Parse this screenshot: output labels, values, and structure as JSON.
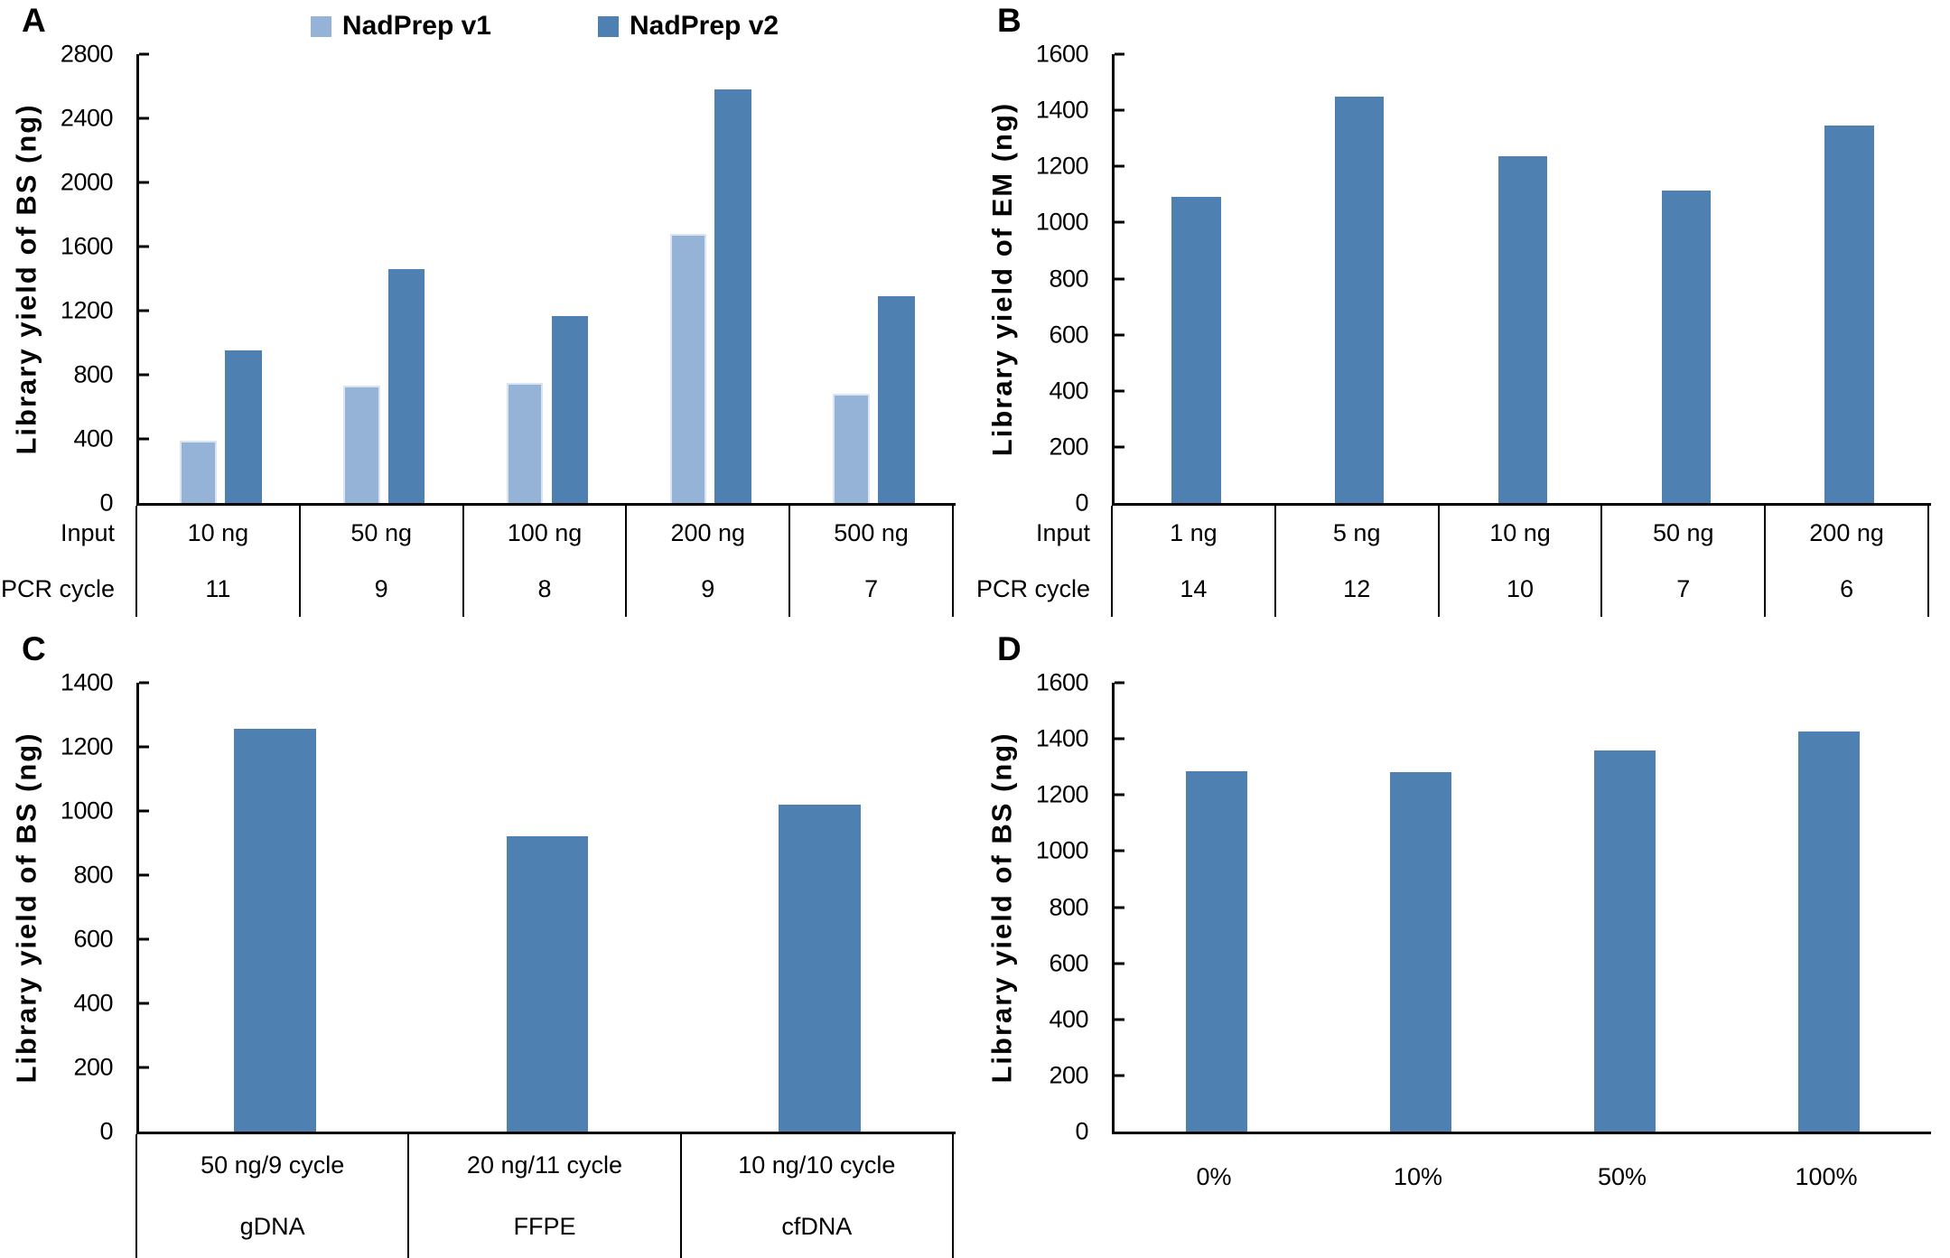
{
  "figure": {
    "background": "#ffffff"
  },
  "palette": {
    "series_light": "#95B3D7",
    "series_dark": "#4E80B2",
    "axis": "#000000",
    "light_bar_border": "#DBE5F1"
  },
  "chart_data": [
    {
      "panel": "A",
      "type": "bar",
      "title": "",
      "ylabel": "Library yield of BS (ng)",
      "xlabel": "",
      "ylim": [
        0,
        2800
      ],
      "ytick_step": 400,
      "grid": false,
      "legend_position": "top",
      "categories": [
        "10 ng",
        "50 ng",
        "100 ng",
        "200 ng",
        "500 ng"
      ],
      "series": [
        {
          "name": "NadPrep v1",
          "color": "#95B3D7",
          "values": [
            390,
            730,
            750,
            1680,
            680
          ]
        },
        {
          "name": "NadPrep v2",
          "color": "#4E80B2",
          "values": [
            950,
            1460,
            1165,
            2580,
            1290
          ]
        }
      ],
      "x_table": {
        "bordered": true,
        "row_labels": [
          "Input",
          "PCR cycle"
        ],
        "rows": [
          [
            "10 ng",
            "50 ng",
            "100 ng",
            "200 ng",
            "500 ng"
          ],
          [
            "11",
            "9",
            "8",
            "9",
            "7"
          ]
        ]
      }
    },
    {
      "panel": "B",
      "type": "bar",
      "title": "",
      "ylabel": "Library yield of EM (ng)",
      "xlabel": "",
      "ylim": [
        0,
        1600
      ],
      "ytick_step": 200,
      "grid": false,
      "legend_position": "none",
      "categories": [
        "1 ng",
        "5 ng",
        "10 ng",
        "50 ng",
        "200 ng"
      ],
      "series": [
        {
          "color": "#4E80B2",
          "values": [
            1090,
            1450,
            1235,
            1115,
            1345
          ]
        }
      ],
      "x_table": {
        "bordered": true,
        "row_labels": [
          "Input",
          "PCR cycle"
        ],
        "rows": [
          [
            "1 ng",
            "5 ng",
            "10 ng",
            "50 ng",
            "200 ng"
          ],
          [
            "14",
            "12",
            "10",
            "7",
            "6"
          ]
        ]
      }
    },
    {
      "panel": "C",
      "type": "bar",
      "title": "",
      "ylabel": "Library yield of BS (ng)",
      "xlabel": "",
      "ylim": [
        0,
        1400
      ],
      "ytick_step": 200,
      "grid": false,
      "legend_position": "none",
      "categories": [
        "50 ng/9 cycle",
        "20 ng/11 cycle",
        "10 ng/10 cycle"
      ],
      "series": [
        {
          "color": "#4E80B2",
          "values": [
            1255,
            920,
            1020
          ]
        }
      ],
      "x_table": {
        "bordered": true,
        "rows": [
          [
            "50 ng/9 cycle",
            "20 ng/11 cycle",
            "10 ng/10 cycle"
          ],
          [
            "gDNA",
            "FFPE",
            "cfDNA"
          ]
        ]
      }
    },
    {
      "panel": "D",
      "type": "bar",
      "title": "",
      "ylabel": "Library yield of BS (ng)",
      "xlabel": "",
      "ylim": [
        0,
        1600
      ],
      "ytick_step": 200,
      "grid": false,
      "legend_position": "none",
      "categories": [
        "0%",
        "10%",
        "50%",
        "100%"
      ],
      "series": [
        {
          "color": "#4E80B2",
          "values": [
            1285,
            1280,
            1360,
            1425
          ]
        }
      ],
      "x_table": {
        "bordered": false,
        "rows": [
          [
            "0%",
            "10%",
            "50%",
            "100%"
          ]
        ]
      }
    }
  ]
}
